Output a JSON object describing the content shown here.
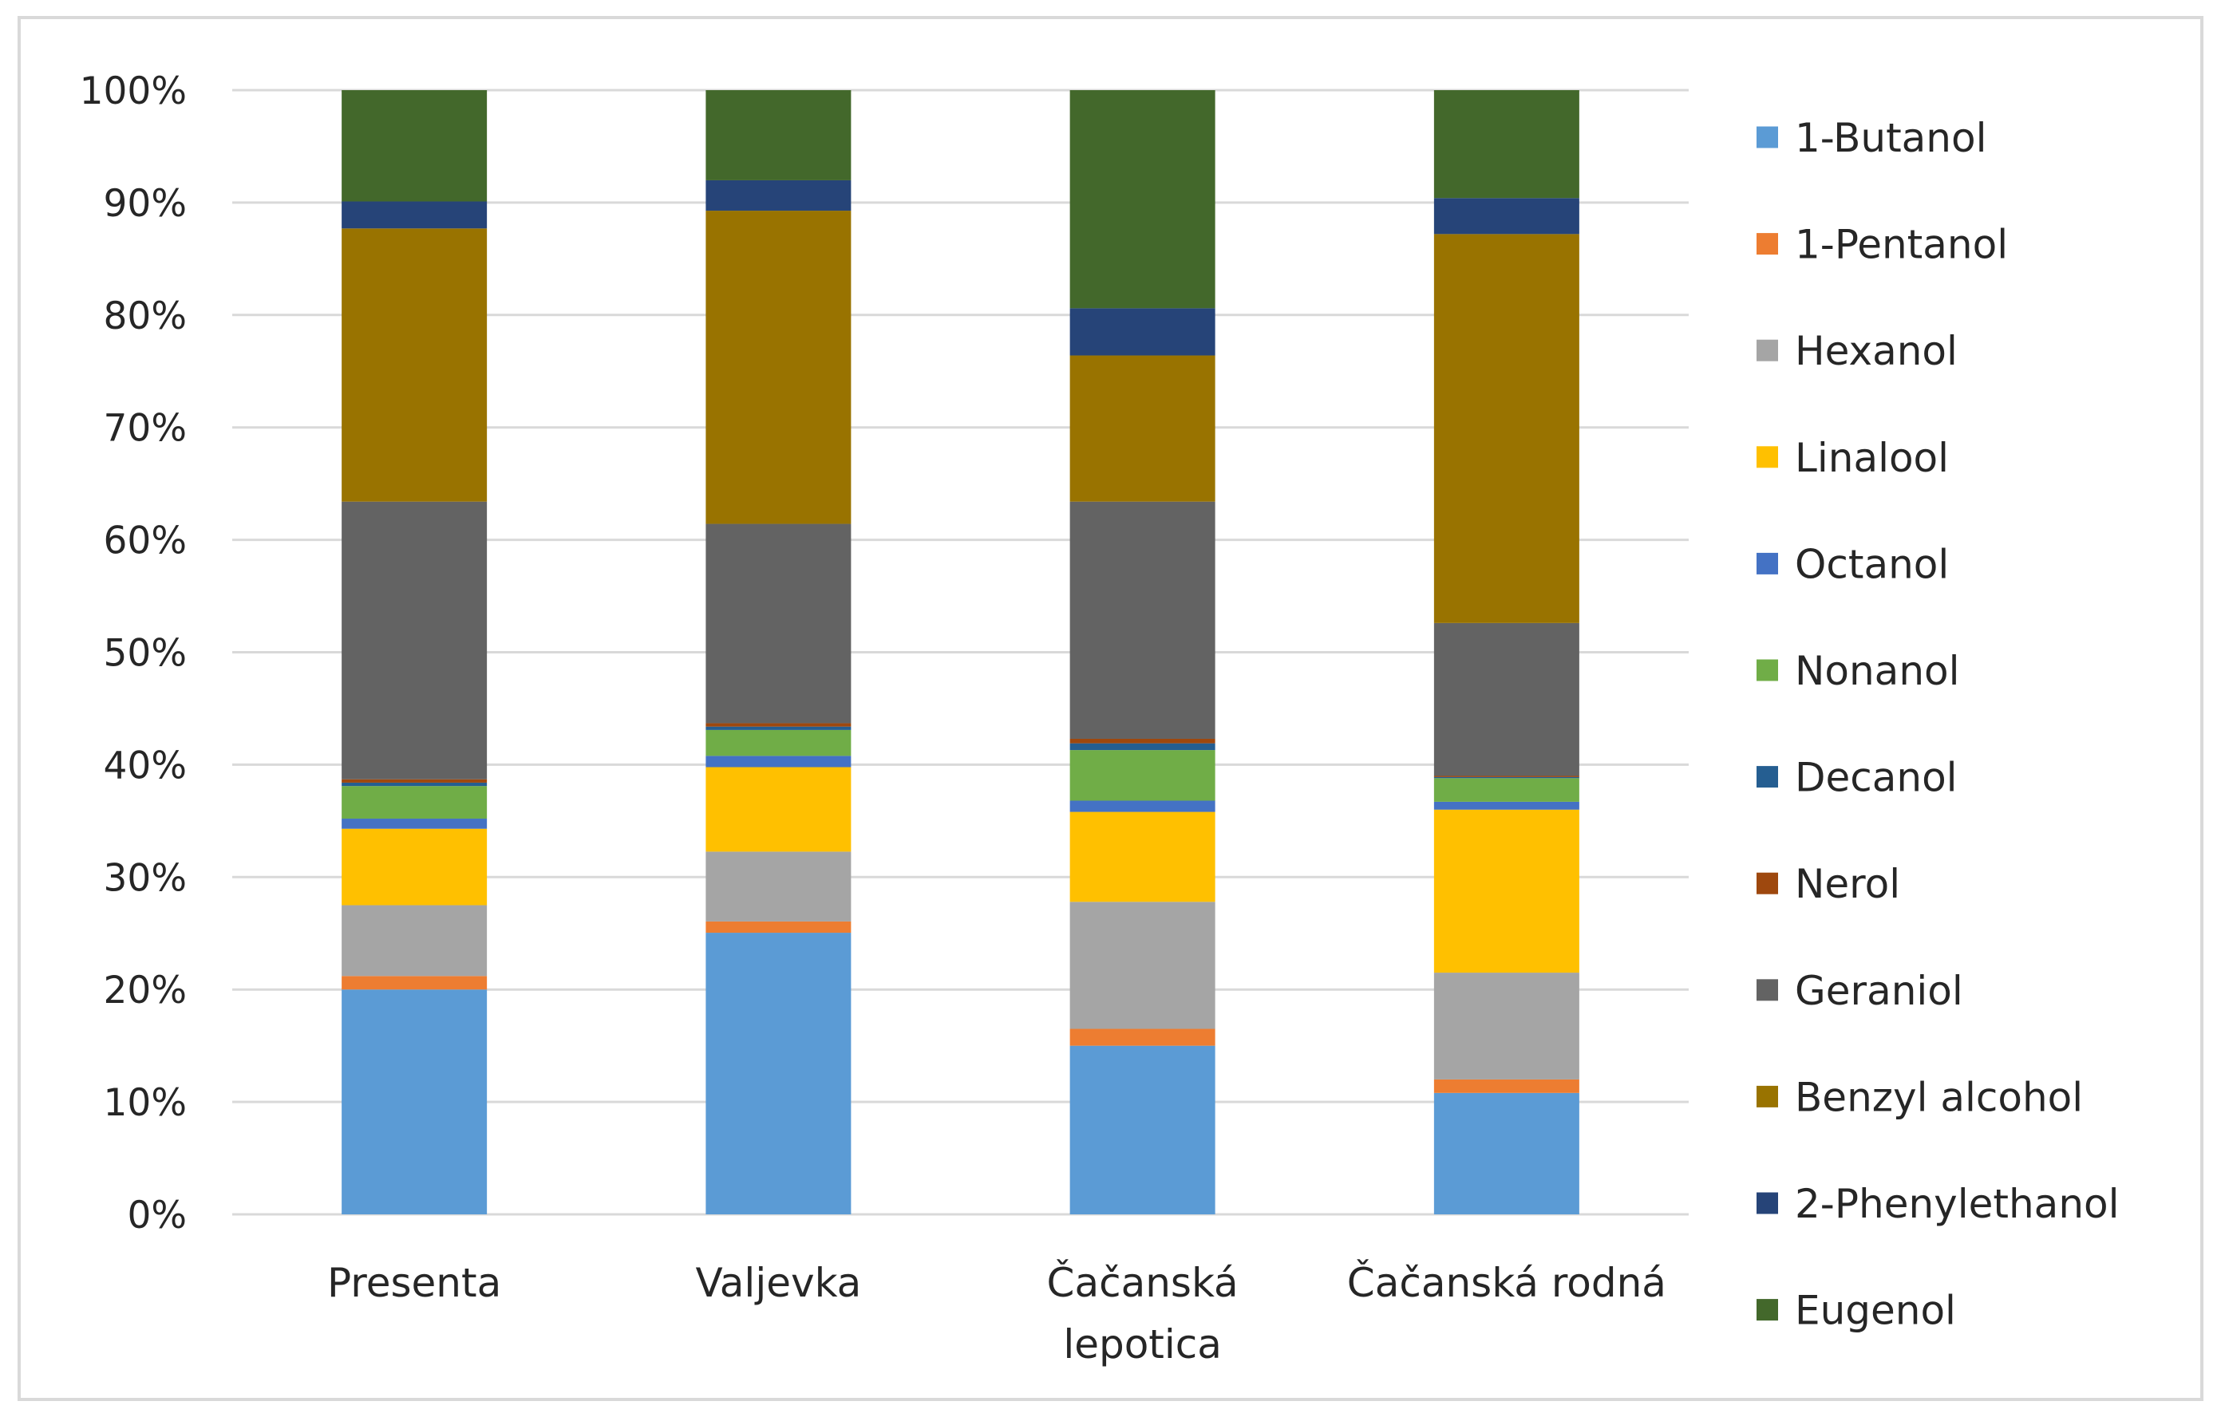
{
  "chart_data": {
    "type": "bar",
    "stacked": true,
    "percent": true,
    "title": "",
    "xlabel": "",
    "ylabel": "",
    "ylim": [
      0,
      100
    ],
    "yticks": [
      "0%",
      "10%",
      "20%",
      "30%",
      "40%",
      "50%",
      "60%",
      "70%",
      "80%",
      "90%",
      "100%"
    ],
    "categories": [
      [
        "Presenta"
      ],
      [
        "Valjevka"
      ],
      [
        "Čačanská",
        "lepotica"
      ],
      [
        "Čačanská rodná"
      ]
    ],
    "legend_position": "right",
    "grid": true,
    "series": [
      {
        "name": "1-Butanol",
        "color": "#5b9bd5",
        "values": [
          20.0,
          25.0,
          15.0,
          10.8
        ]
      },
      {
        "name": "1-Pentanol",
        "color": "#ed7d31",
        "values": [
          1.2,
          1.0,
          1.5,
          1.2
        ]
      },
      {
        "name": "Hexanol",
        "color": "#a5a5a5",
        "values": [
          6.3,
          6.2,
          11.3,
          9.5
        ]
      },
      {
        "name": "Linalool",
        "color": "#ffc000",
        "values": [
          6.8,
          7.5,
          8.0,
          14.5
        ]
      },
      {
        "name": "Octanol",
        "color": "#4472c4",
        "values": [
          0.9,
          1.0,
          1.0,
          0.7
        ]
      },
      {
        "name": "Nonanol",
        "color": "#70ad47",
        "values": [
          2.9,
          2.3,
          4.5,
          2.1
        ]
      },
      {
        "name": "Decanol",
        "color": "#255e91",
        "values": [
          0.3,
          0.3,
          0.6,
          0.1
        ]
      },
      {
        "name": "Nerol",
        "color": "#9e480e",
        "values": [
          0.3,
          0.3,
          0.4,
          0.1
        ]
      },
      {
        "name": "Geraniol",
        "color": "#636363",
        "values": [
          24.7,
          17.7,
          21.1,
          13.6
        ]
      },
      {
        "name": "Benzyl alcohol",
        "color": "#997300",
        "values": [
          24.3,
          27.8,
          13.0,
          34.6
        ]
      },
      {
        "name": "2-Phenylethanol",
        "color": "#264478",
        "values": [
          2.4,
          2.7,
          4.2,
          3.2
        ]
      },
      {
        "name": "Eugenol",
        "color": "#43682b",
        "values": [
          9.9,
          8.0,
          19.4,
          9.6
        ]
      }
    ]
  }
}
